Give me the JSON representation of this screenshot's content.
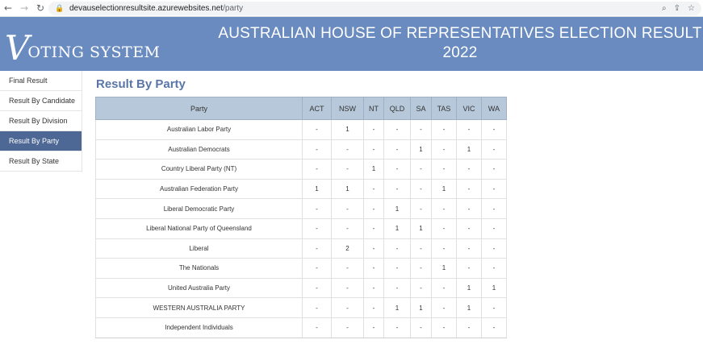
{
  "browser": {
    "url_host": "devauselectionresultsite.azurewebsites.net",
    "url_path": "/party"
  },
  "header": {
    "logo_first": "V",
    "logo_rest": "OTING SYSTEM",
    "title": "AUSTRALIAN HOUSE OF REPRESENTATIVES ELECTION RESULT 2022",
    "background_color": "#6a8bc0"
  },
  "sidebar": {
    "items": [
      {
        "label": "Final Result",
        "active": false
      },
      {
        "label": "Result By Candidate",
        "active": false
      },
      {
        "label": "Result By Division",
        "active": false
      },
      {
        "label": "Result By Party",
        "active": true
      },
      {
        "label": "Result By State",
        "active": false
      }
    ],
    "active_color": "#4d6894"
  },
  "main": {
    "title": "Result By Party",
    "table": {
      "headers": [
        "Party",
        "ACT",
        "NSW",
        "NT",
        "QLD",
        "SA",
        "TAS",
        "VIC",
        "WA"
      ],
      "rows": [
        [
          "Australian Labor Party",
          "-",
          "1",
          "-",
          "-",
          "-",
          "-",
          "-",
          "-"
        ],
        [
          "Australian Democrats",
          "-",
          "-",
          "-",
          "-",
          "1",
          "-",
          "1",
          "-"
        ],
        [
          "Country Liberal Party (NT)",
          "-",
          "-",
          "1",
          "-",
          "-",
          "-",
          "-",
          "-"
        ],
        [
          "Australian Federation Party",
          "1",
          "1",
          "-",
          "-",
          "-",
          "1",
          "-",
          "-"
        ],
        [
          "Liberal Democratic Party",
          "-",
          "-",
          "-",
          "1",
          "-",
          "-",
          "-",
          "-"
        ],
        [
          "Liberal National Party of Queensland",
          "-",
          "-",
          "-",
          "1",
          "1",
          "-",
          "-",
          "-"
        ],
        [
          "Liberal",
          "-",
          "2",
          "-",
          "-",
          "-",
          "-",
          "-",
          "-"
        ],
        [
          "The Nationals",
          "-",
          "-",
          "-",
          "-",
          "-",
          "1",
          "-",
          "-"
        ],
        [
          "United Australia Party",
          "-",
          "-",
          "-",
          "-",
          "-",
          "-",
          "1",
          "1"
        ],
        [
          "WESTERN AUSTRALIA PARTY",
          "-",
          "-",
          "-",
          "1",
          "1",
          "-",
          "1",
          "-"
        ],
        [
          "Independent Individuals",
          "-",
          "-",
          "-",
          "-",
          "-",
          "-",
          "-",
          "-"
        ]
      ]
    }
  },
  "icons": {
    "back": "back-arrow-icon",
    "forward": "forward-arrow-icon",
    "reload": "reload-icon",
    "lock": "lock-icon",
    "zoom": "zoom-icon",
    "share": "share-icon",
    "bookmark": "star-icon"
  }
}
